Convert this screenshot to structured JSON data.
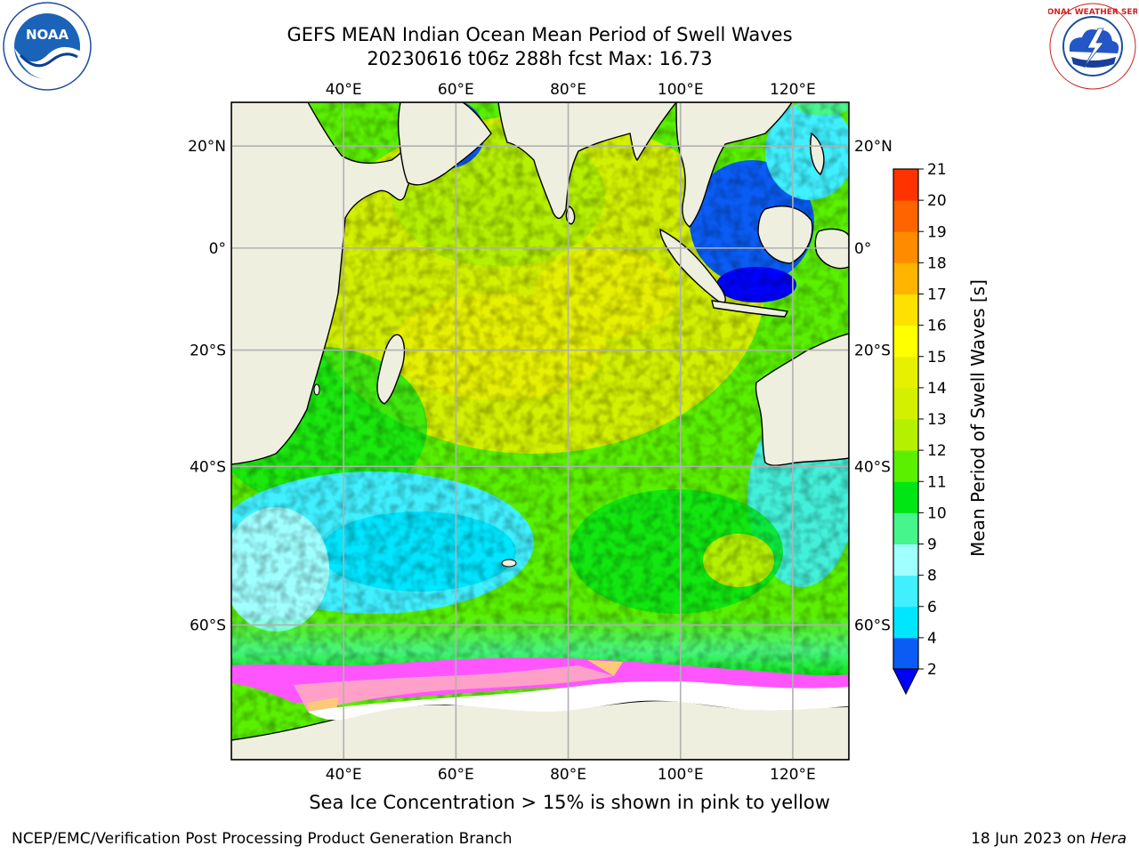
{
  "title": {
    "line1": "GEFS MEAN Indian Ocean Mean Period of Swell Waves",
    "line2": "20230616 t06z 288h fcst   Max: 16.73"
  },
  "logos": {
    "left": {
      "icon": "noaa-logo",
      "text": "NOAA"
    },
    "right": {
      "icon": "national-weather-service-logo",
      "text": "NATIONAL WEATHER SERVICE"
    }
  },
  "map": {
    "region": "Indian Ocean",
    "lon_range": [
      20,
      130
    ],
    "lat_range": [
      -71,
      28
    ],
    "lon_ticks": [
      40,
      60,
      80,
      100,
      120
    ],
    "lat_ticks": [
      20,
      0,
      -20,
      -40,
      -60
    ],
    "lon_tick_labels": [
      "40°E",
      "60°E",
      "80°E",
      "100°E",
      "120°E"
    ],
    "lat_tick_labels_left": [
      "20°N",
      "0°",
      "20°S",
      "40°S",
      "60°S"
    ],
    "lat_tick_labels_right": [
      "20°N",
      "0°",
      "20°S",
      "40°S",
      "60°S"
    ],
    "gridlines": true,
    "land_color": "#efefdf",
    "ice_edge_lat": -66,
    "sea_ice_colors": [
      "#ff55ff",
      "#ffa0c8",
      "#ffc878"
    ]
  },
  "colorbar": {
    "label": "Mean Period of Swell Waves [s]",
    "ticks": [
      "2",
      "4",
      "6",
      "8",
      "9",
      "10",
      "11",
      "12",
      "13",
      "14",
      "15",
      "16",
      "17",
      "18",
      "19",
      "20",
      "21"
    ],
    "colors": [
      "#0a5cf5",
      "#00e6ff",
      "#40f0ff",
      "#a0ffff",
      "#46f58c",
      "#00e614",
      "#5af000",
      "#b4f000",
      "#d2f000",
      "#e6f000",
      "#ffff00",
      "#ffe100",
      "#ffb400",
      "#ff8c00",
      "#ff6400",
      "#ff3200",
      "#ff0000"
    ],
    "extend_low_color": "#0000ff"
  },
  "caption": "Sea Ice Concentration > 15% is shown in pink to yellow",
  "footer": {
    "left": "NCEP/EMC/Verification Post Processing Product Generation Branch",
    "right_date": "18 Jun 2023 on ",
    "right_machine": "Hera"
  }
}
